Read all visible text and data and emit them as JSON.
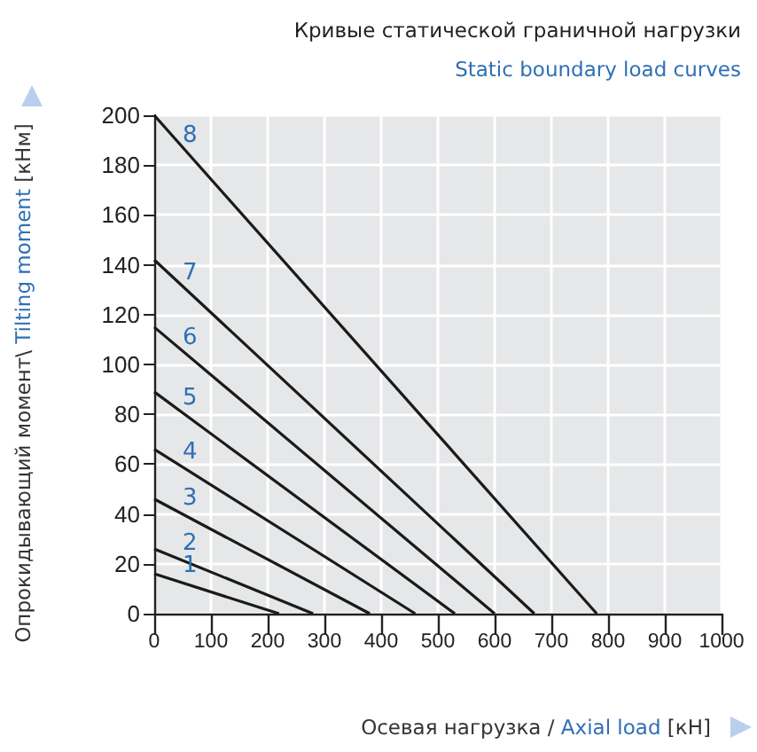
{
  "chart_data": {
    "type": "line",
    "title": "Кривые статической граничной нагрузки",
    "subtitle": "Static boundary load curves",
    "xlabel": "Осевая нагрузка / Axial load [кН]",
    "ylabel": "Опрокидывающий момент\\ Tilting moment [кНм]",
    "xlim": [
      0,
      1000
    ],
    "xticks": [
      0,
      100,
      200,
      300,
      400,
      500,
      600,
      700,
      800,
      900,
      1000
    ],
    "ylim": [
      0,
      200
    ],
    "yticks": [
      0,
      20,
      40,
      60,
      80,
      100,
      120,
      140,
      160,
      180,
      200
    ],
    "grid": true,
    "legend": false,
    "marker": "none",
    "line_style": "solid",
    "series": [
      {
        "name": "1",
        "color": "#1a1a1a",
        "x": [
          0,
          220
        ],
        "values": [
          16,
          0
        ]
      },
      {
        "name": "2",
        "color": "#1a1a1a",
        "x": [
          0,
          280
        ],
        "values": [
          26,
          0
        ]
      },
      {
        "name": "3",
        "color": "#1a1a1a",
        "x": [
          0,
          380
        ],
        "values": [
          46,
          0
        ]
      },
      {
        "name": "4",
        "color": "#1a1a1a",
        "x": [
          0,
          460
        ],
        "values": [
          66,
          0
        ]
      },
      {
        "name": "5",
        "color": "#1a1a1a",
        "x": [
          0,
          530
        ],
        "values": [
          89,
          0
        ]
      },
      {
        "name": "6",
        "color": "#1a1a1a",
        "x": [
          0,
          600
        ],
        "values": [
          115,
          0
        ]
      },
      {
        "name": "7",
        "color": "#1a1a1a",
        "x": [
          0,
          670
        ],
        "values": [
          142,
          0
        ]
      },
      {
        "name": "8",
        "color": "#1a1a1a",
        "x": [
          0,
          780
        ],
        "values": [
          200,
          0
        ]
      }
    ]
  }
}
